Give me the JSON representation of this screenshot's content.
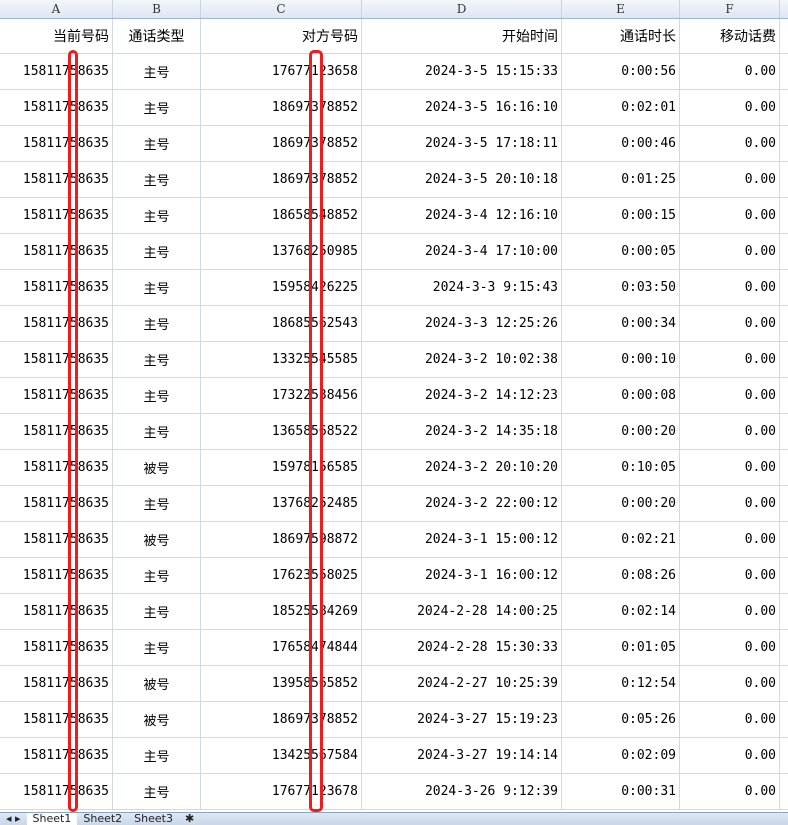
{
  "columns": [
    "A",
    "B",
    "C",
    "D",
    "E",
    "F"
  ],
  "headers": [
    "当前号码",
    "通话类型",
    "对方号码",
    "开始时间",
    "通话时长",
    "移动话费"
  ],
  "rows": [
    [
      "15811758635",
      "主号",
      "17677123658",
      "2024-3-5 15:15:33",
      "0:00:56",
      "0.00"
    ],
    [
      "15811758635",
      "主号",
      "18697378852",
      "2024-3-5 16:16:10",
      "0:02:01",
      "0.00"
    ],
    [
      "15811758635",
      "主号",
      "18697378852",
      "2024-3-5 17:18:11",
      "0:00:46",
      "0.00"
    ],
    [
      "15811758635",
      "主号",
      "18697378852",
      "2024-3-5 20:10:18",
      "0:01:25",
      "0.00"
    ],
    [
      "15811758635",
      "主号",
      "18658548852",
      "2024-3-4 12:16:10",
      "0:00:15",
      "0.00"
    ],
    [
      "15811758635",
      "主号",
      "13768250985",
      "2024-3-4 17:10:00",
      "0:00:05",
      "0.00"
    ],
    [
      "15811758635",
      "主号",
      "15958426225",
      "2024-3-3 9:15:43",
      "0:03:50",
      "0.00"
    ],
    [
      "15811758635",
      "主号",
      "18685562543",
      "2024-3-3 12:25:26",
      "0:00:34",
      "0.00"
    ],
    [
      "15811758635",
      "主号",
      "13325545585",
      "2024-3-2 10:02:38",
      "0:00:10",
      "0.00"
    ],
    [
      "15811758635",
      "主号",
      "17322538456",
      "2024-3-2 14:12:23",
      "0:00:08",
      "0.00"
    ],
    [
      "15811758635",
      "主号",
      "13658568522",
      "2024-3-2 14:35:18",
      "0:00:20",
      "0.00"
    ],
    [
      "15811758635",
      "被号",
      "15978156585",
      "2024-3-2 20:10:20",
      "0:10:05",
      "0.00"
    ],
    [
      "15811758635",
      "主号",
      "13768252485",
      "2024-3-2 22:00:12",
      "0:00:20",
      "0.00"
    ],
    [
      "15811758635",
      "被号",
      "18697598872",
      "2024-3-1 15:00:12",
      "0:02:21",
      "0.00"
    ],
    [
      "15811758635",
      "主号",
      "17623558025",
      "2024-3-1 16:00:12",
      "0:08:26",
      "0.00"
    ],
    [
      "15811758635",
      "主号",
      "18525584269",
      "2024-2-28 14:00:25",
      "0:02:14",
      "0.00"
    ],
    [
      "15811758635",
      "主号",
      "17658474844",
      "2024-2-28 15:30:33",
      "0:01:05",
      "0.00"
    ],
    [
      "15811758635",
      "被号",
      "13958565852",
      "2024-2-27 10:25:39",
      "0:12:54",
      "0.00"
    ],
    [
      "15811758635",
      "被号",
      "18697378852",
      "2024-3-27 15:19:23",
      "0:05:26",
      "0.00"
    ],
    [
      "15811758635",
      "主号",
      "13425567584",
      "2024-3-27 19:14:14",
      "0:02:09",
      "0.00"
    ],
    [
      "15811758635",
      "主号",
      "17677123678",
      "2024-3-26 9:12:39",
      "0:00:31",
      "0.00"
    ]
  ],
  "sheet_tabs": [
    "Sheet1",
    "Sheet2",
    "Sheet3"
  ],
  "redaction_color": "#ee1c1c"
}
